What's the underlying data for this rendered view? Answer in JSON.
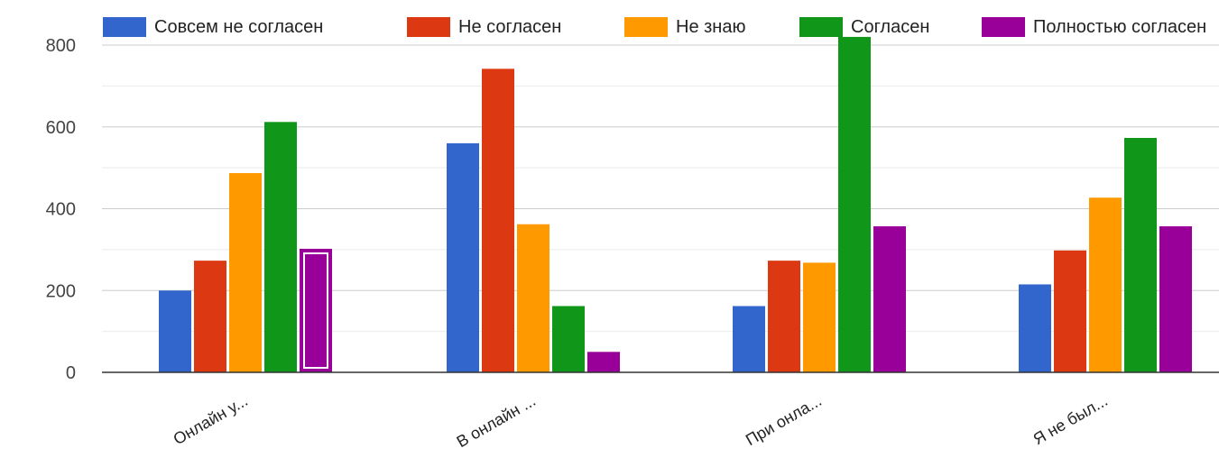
{
  "chart_data": {
    "type": "bar",
    "categories": [
      "Онлайн у...",
      "В онлайн ...",
      "При онла...",
      "Я не был..."
    ],
    "series": [
      {
        "name": "Совсем не согласен",
        "color": "#3366cc",
        "values": [
          200,
          560,
          162,
          215
        ]
      },
      {
        "name": "Не согласен",
        "color": "#dc3912",
        "values": [
          273,
          742,
          273,
          298
        ]
      },
      {
        "name": "Не знаю",
        "color": "#ff9900",
        "values": [
          487,
          362,
          268,
          427
        ]
      },
      {
        "name": "Согласен",
        "color": "#109618",
        "values": [
          612,
          162,
          820,
          573
        ]
      },
      {
        "name": "Полностью согласен",
        "color": "#990099",
        "values": [
          302,
          50,
          357,
          357
        ]
      }
    ],
    "yticks": [
      "0",
      "200",
      "400",
      "600",
      "800"
    ],
    "ylim": [
      0,
      800
    ],
    "grid": true,
    "legend_position": "top",
    "highlighted_bar": {
      "series": 4,
      "category": 0
    }
  }
}
